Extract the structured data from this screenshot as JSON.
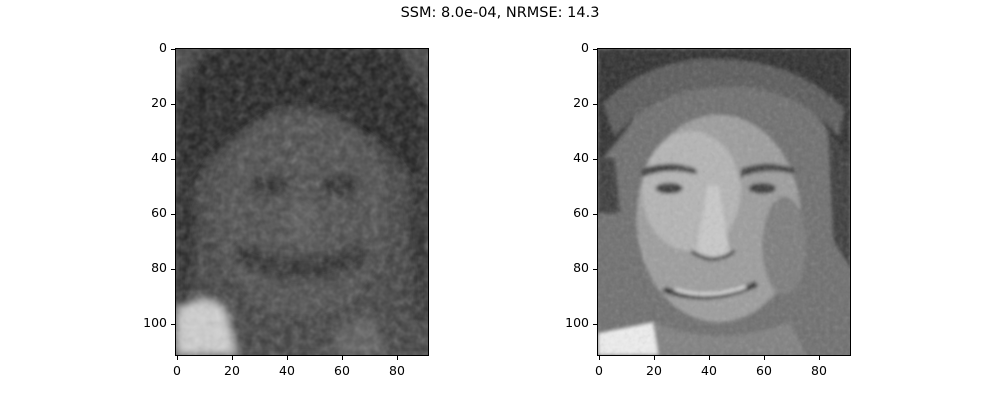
{
  "figure_title": "SSM: 8.0e-04, NRMSE: 14.3",
  "axes": [
    {
      "name": "reconstructed-face",
      "image_description_icon": "blurry-reconstructed-face-image",
      "y_ticks": [
        "0",
        "20",
        "40",
        "60",
        "80",
        "100"
      ],
      "x_ticks": [
        "0",
        "20",
        "40",
        "60",
        "80"
      ]
    },
    {
      "name": "original-face",
      "image_description_icon": "original-face-photo",
      "y_ticks": [
        "0",
        "20",
        "40",
        "60",
        "80",
        "100"
      ],
      "x_ticks": [
        "0",
        "20",
        "40",
        "60",
        "80"
      ]
    }
  ],
  "colors": {
    "reconstructed_bg": "#3a3a3a",
    "original_bg": "#6e6e6e"
  }
}
